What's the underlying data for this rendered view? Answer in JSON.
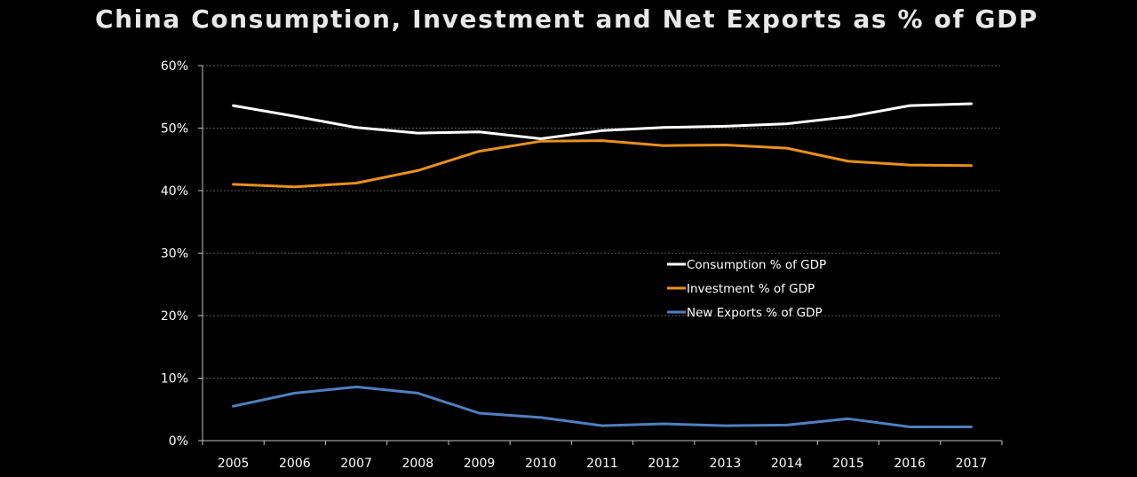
{
  "chart_data": {
    "type": "line",
    "title": "China Consumption, Investment and Net Exports as % of GDP",
    "xlabel": "",
    "ylabel": "",
    "categories": [
      "2005",
      "2006",
      "2007",
      "2008",
      "2009",
      "2010",
      "2011",
      "2012",
      "2013",
      "2014",
      "2015",
      "2016",
      "2017"
    ],
    "yticks": [
      "0%",
      "10%",
      "20%",
      "30%",
      "40%",
      "50%",
      "60%"
    ],
    "ylim": [
      0,
      60
    ],
    "grid": true,
    "legend_position": "center-right",
    "background": "#000000",
    "series": [
      {
        "name": "Consumption % of GDP",
        "color": "#ffffff",
        "values": [
          53.6,
          51.9,
          50.1,
          49.2,
          49.4,
          48.3,
          49.6,
          50.1,
          50.3,
          50.7,
          51.8,
          53.6,
          53.9
        ]
      },
      {
        "name": "Investment % of GDP",
        "color": "#e8901e",
        "values": [
          41.0,
          40.6,
          41.2,
          43.2,
          46.3,
          47.9,
          48.0,
          47.2,
          47.3,
          46.8,
          44.7,
          44.1,
          44.0
        ]
      },
      {
        "name": "New Exports % of GDP",
        "color": "#4f7fbf",
        "values": [
          5.5,
          7.6,
          8.6,
          7.6,
          4.4,
          3.7,
          2.4,
          2.7,
          2.4,
          2.5,
          3.5,
          2.2,
          2.2
        ]
      }
    ]
  }
}
